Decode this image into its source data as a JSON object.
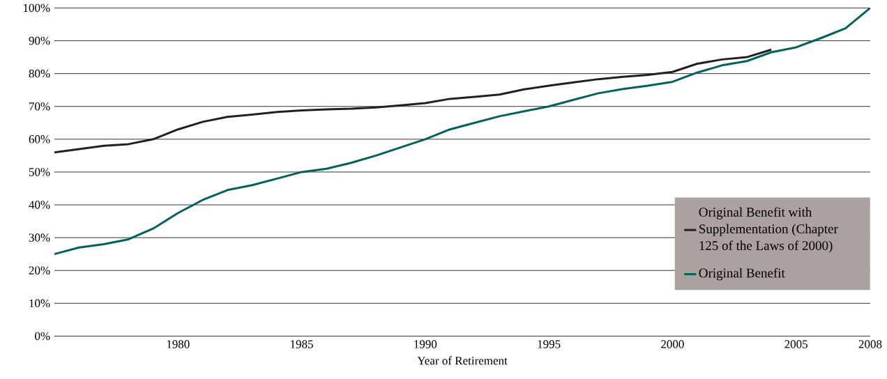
{
  "chart_data": {
    "type": "line",
    "xlabel": "Year of Retirement",
    "x": [
      1975,
      1976,
      1977,
      1978,
      1979,
      1980,
      1981,
      1982,
      1983,
      1984,
      1985,
      1986,
      1987,
      1988,
      1989,
      1990,
      1991,
      1992,
      1993,
      1994,
      1995,
      1996,
      1997,
      1998,
      1999,
      2000,
      2001,
      2002,
      2003,
      2004,
      2005,
      2006,
      2007,
      2008
    ],
    "series": [
      {
        "name": "Original Benefit with Supplementation (Chapter 125 of the Laws of 2000)",
        "color": "#231f20",
        "values": [
          56,
          57,
          58,
          58.5,
          60,
          63,
          65.3,
          66.8,
          67.5,
          68.3,
          68.8,
          69.1,
          69.3,
          69.7,
          70.3,
          71,
          72.3,
          72.9,
          73.6,
          75.2,
          76.3,
          77.3,
          78.3,
          79,
          79.6,
          80.5,
          83,
          84.3,
          85,
          87.3,
          null,
          null,
          null,
          null
        ]
      },
      {
        "name": "Original Benefit",
        "color": "#00605e",
        "values": [
          25,
          27,
          28,
          29.5,
          32.8,
          37.5,
          41.5,
          44.5,
          46,
          48,
          50,
          51,
          52.8,
          55,
          57.5,
          60,
          63,
          65,
          67,
          68.5,
          70,
          72,
          74,
          75.3,
          76.3,
          77.5,
          80.3,
          82.5,
          83.8,
          86.5,
          88,
          90.8,
          93.8,
          100
        ]
      }
    ],
    "xlim": [
      1975,
      2008
    ],
    "xticks": [
      1980,
      1985,
      1990,
      1995,
      2000,
      2005,
      2008
    ],
    "ylim": [
      0,
      100
    ],
    "yticks": [
      {
        "value": 0,
        "label": "0%"
      },
      {
        "value": 10,
        "label": "10%"
      },
      {
        "value": 20,
        "label": "20%"
      },
      {
        "value": 30,
        "label": "30%"
      },
      {
        "value": 40,
        "label": "40%"
      },
      {
        "value": 50,
        "label": "50%"
      },
      {
        "value": 60,
        "label": "60%"
      },
      {
        "value": 70,
        "label": "70%"
      },
      {
        "value": 80,
        "label": "80%"
      },
      {
        "value": 90,
        "label": "90%"
      },
      {
        "value": 100,
        "label": "100%"
      }
    ],
    "grid": "y",
    "legend": "right",
    "line_style": "solid",
    "marker": "none"
  }
}
